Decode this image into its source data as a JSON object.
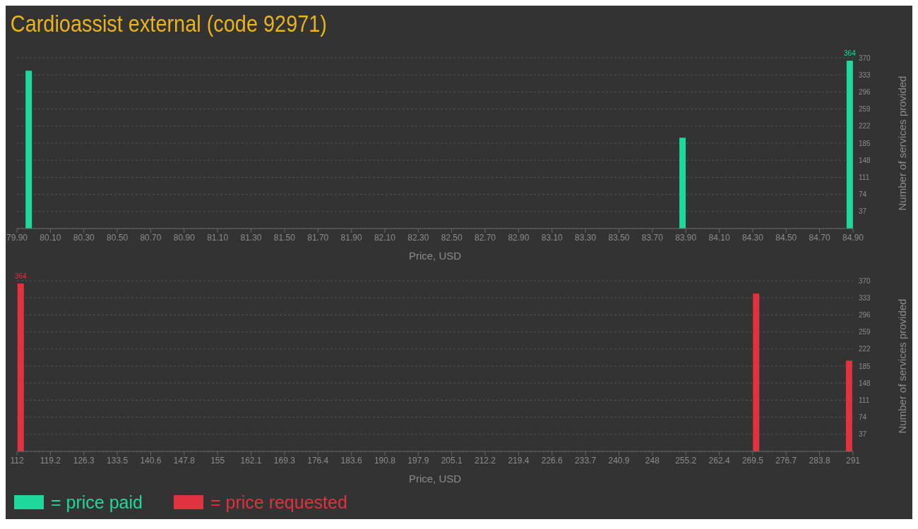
{
  "chart_data": [
    {
      "type": "bar",
      "title": "Cardioassist external (code 92971)",
      "xlabel": "Price, USD",
      "ylabel": "Number of services provided",
      "x": [
        79.97,
        83.88,
        84.88
      ],
      "series": [
        {
          "name": "= price paid",
          "color": "#1fd89b",
          "values": [
            342,
            197,
            364
          ],
          "value_labels": [
            null,
            null,
            "364"
          ]
        }
      ],
      "xlim": [
        79.9,
        84.9
      ],
      "xticks": [
        {
          "value": 79.9,
          "label": "79.90"
        },
        {
          "value": 80.1,
          "label": "80.10"
        },
        {
          "value": 80.3,
          "label": "80.30"
        },
        {
          "value": 80.5,
          "label": "80.50"
        },
        {
          "value": 80.7,
          "label": "80.70"
        },
        {
          "value": 80.9,
          "label": "80.90"
        },
        {
          "value": 81.1,
          "label": "81.10"
        },
        {
          "value": 81.3,
          "label": "81.30"
        },
        {
          "value": 81.5,
          "label": "81.50"
        },
        {
          "value": 81.7,
          "label": "81.70"
        },
        {
          "value": 81.9,
          "label": "81.90"
        },
        {
          "value": 82.1,
          "label": "82.10"
        },
        {
          "value": 82.3,
          "label": "82.30"
        },
        {
          "value": 82.5,
          "label": "82.50"
        },
        {
          "value": 82.7,
          "label": "82.70"
        },
        {
          "value": 82.9,
          "label": "82.90"
        },
        {
          "value": 83.1,
          "label": "83.10"
        },
        {
          "value": 83.3,
          "label": "83.30"
        },
        {
          "value": 83.5,
          "label": "83.50"
        },
        {
          "value": 83.7,
          "label": "83.70"
        },
        {
          "value": 83.9,
          "label": "83.90"
        },
        {
          "value": 84.1,
          "label": "84.10"
        },
        {
          "value": 84.3,
          "label": "84.30"
        },
        {
          "value": 84.5,
          "label": "84.50"
        },
        {
          "value": 84.7,
          "label": "84.70"
        },
        {
          "value": 84.9,
          "label": "84.90"
        }
      ],
      "ylim": [
        0,
        370
      ],
      "yticks": [
        37,
        74,
        111,
        148,
        185,
        222,
        259,
        296,
        333,
        370
      ],
      "grid": "y",
      "legend": "bottom left"
    },
    {
      "type": "bar",
      "xlabel": "Price, USD",
      "ylabel": "Number of services provided",
      "x": [
        112.85,
        270.3,
        290.2
      ],
      "series": [
        {
          "name": "= price requested",
          "color": "#e0323f",
          "values": [
            364,
            342,
            197
          ],
          "value_labels": [
            "364",
            null,
            null
          ]
        }
      ],
      "xlim": [
        112,
        291
      ],
      "xticks": [
        112,
        {
          "value": 119.16,
          "label": "119.2"
        },
        {
          "value": 126.32,
          "label": "126.3"
        },
        {
          "value": 133.48,
          "label": "133.5"
        },
        {
          "value": 140.64,
          "label": "140.6"
        },
        147.8,
        {
          "value": 154.96,
          "label": "155"
        },
        {
          "value": 162.12,
          "label": "162.1"
        },
        {
          "value": 169.28,
          "label": "169.3"
        },
        {
          "value": 176.44,
          "label": "176.4"
        },
        183.6,
        {
          "value": 190.76,
          "label": "190.8"
        },
        {
          "value": 197.92,
          "label": "197.9"
        },
        {
          "value": 205.08,
          "label": "205.1"
        },
        {
          "value": 212.24,
          "label": "212.2"
        },
        219.4,
        {
          "value": 226.56,
          "label": "226.6"
        },
        {
          "value": 233.72,
          "label": "233.7"
        },
        {
          "value": 240.88,
          "label": "240.9"
        },
        {
          "value": 248.04,
          "label": "248"
        },
        255.2,
        {
          "value": 262.36,
          "label": "262.4"
        },
        {
          "value": 269.52,
          "label": "269.5"
        },
        {
          "value": 276.68,
          "label": "276.7"
        },
        {
          "value": 283.84,
          "label": "283.8"
        },
        291
      ],
      "ylim": [
        0,
        370
      ],
      "yticks": [
        37,
        74,
        111,
        148,
        185,
        222,
        259,
        296,
        333,
        370
      ],
      "grid": "y",
      "legend": "bottom left"
    }
  ]
}
